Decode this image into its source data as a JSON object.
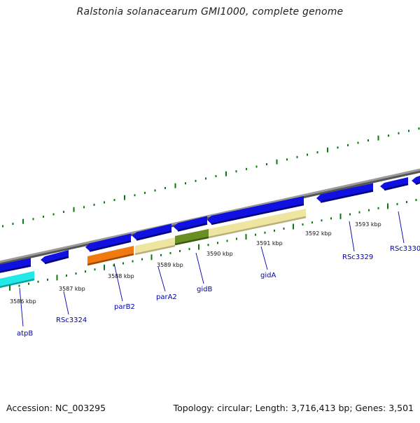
{
  "title": "Ralstonia solanacearum GMI1000, complete genome",
  "footer": {
    "accession": "Accession: NC_003295",
    "summary": "Topology: circular; Length: 3,716,413 bp; Genes: 3,501"
  },
  "colors": {
    "backbone": "#8c8c8c",
    "tick": "#0a7a0a",
    "gene_blue": "#1010e0",
    "gene_orange": "#f07a10",
    "gene_cyan": "#22e8e8",
    "gene_pale": "#eee6a0",
    "gene_olive": "#6b8e23",
    "label": "#0000aa"
  },
  "kbp_labels": [
    "3586 kbp",
    "3587 kbp",
    "3588 kbp",
    "3589 kbp",
    "3590 kbp",
    "3591 kbp",
    "3592 kbp",
    "3593 kbp"
  ],
  "gene_labels": [
    "atpB",
    "RSc3324",
    "parB2",
    "parA2",
    "gidB",
    "gidA",
    "RSc3329",
    "RSc3330"
  ]
}
